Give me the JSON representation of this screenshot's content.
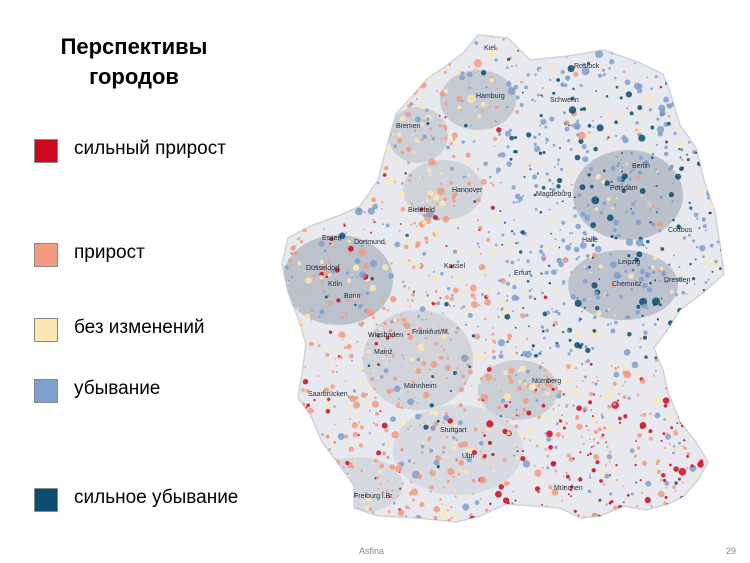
{
  "title": "Перспективы городов",
  "legend": [
    {
      "label": "сильный прирост",
      "color": "#cc0a1e"
    },
    {
      "label": "прирост",
      "color": "#f29a7e"
    },
    {
      "label": "без изменений",
      "color": "#fbe7b2"
    },
    {
      "label": "убывание",
      "color": "#7f9fce"
    },
    {
      "label": "сильное убывание",
      "color": "#0b4d6e"
    }
  ],
  "map": {
    "cities": [
      "Kiel",
      "Rostock",
      "Hamburg",
      "Schwerin",
      "Bremen",
      "Berlin",
      "Potsdam",
      "Hannover",
      "Bielefeld",
      "Magdeburg",
      "Cottbus",
      "Essen",
      "Dortmund",
      "Düsseldorf",
      "Köln",
      "Bonn",
      "Kassel",
      "Halle",
      "Leipzig",
      "Erfurt",
      "Chemnitz",
      "Dresden",
      "Wiesbaden",
      "Frankfurt/M.",
      "Mainz",
      "Mannheim",
      "Saarbrücken",
      "Nürnberg",
      "Stuttgart",
      "Ulm",
      "Freiburg i.Br.",
      "München"
    ]
  },
  "footer": {
    "source": "Asfina",
    "page": "29"
  }
}
